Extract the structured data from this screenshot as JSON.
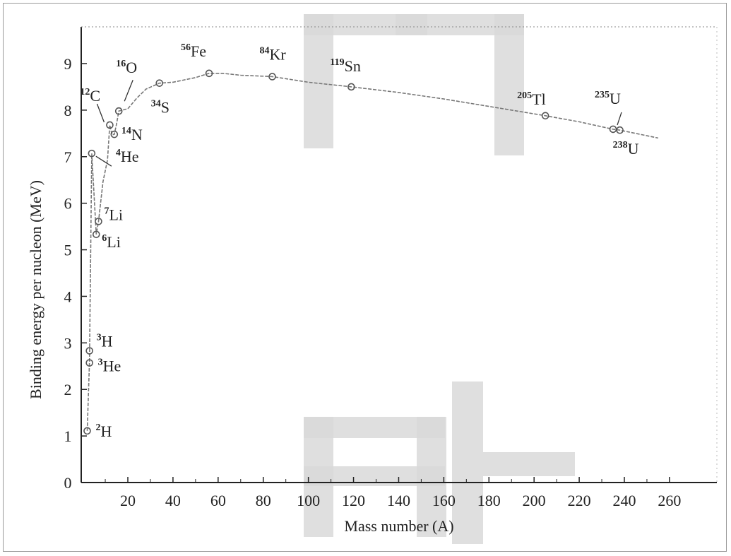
{
  "colors": {
    "curve": "#777777",
    "point": "#555555",
    "axis": "#222222",
    "watermark": "#d6d6d6"
  },
  "chart_data": {
    "type": "line",
    "xlabel": "Mass number (A)",
    "ylabel": "Binding energy per nucleon (MeV)",
    "xlim": [
      0,
      270
    ],
    "ylim": [
      0,
      9.9
    ],
    "x_ticks": [
      20,
      40,
      60,
      80,
      100,
      120,
      140,
      160,
      180,
      200,
      220,
      240,
      260
    ],
    "y_ticks": [
      0,
      1,
      2,
      3,
      4,
      5,
      6,
      7,
      8,
      9
    ],
    "grid": false,
    "points": [
      {
        "sup": "2",
        "el": "H",
        "x": 2,
        "y": 1.11
      },
      {
        "sup": "3",
        "el": "He",
        "x": 3,
        "y": 2.57
      },
      {
        "sup": "3",
        "el": "H",
        "x": 3,
        "y": 2.83
      },
      {
        "sup": "4",
        "el": "He",
        "x": 4,
        "y": 7.07
      },
      {
        "sup": "6",
        "el": "Li",
        "x": 6,
        "y": 5.33
      },
      {
        "sup": "7",
        "el": "Li",
        "x": 7,
        "y": 5.61
      },
      {
        "sup": "12",
        "el": "C",
        "x": 12,
        "y": 7.68
      },
      {
        "sup": "14",
        "el": "N",
        "x": 14,
        "y": 7.48
      },
      {
        "sup": "16",
        "el": "O",
        "x": 16,
        "y": 7.98
      },
      {
        "sup": "34",
        "el": "S",
        "x": 34,
        "y": 8.58
      },
      {
        "sup": "56",
        "el": "Fe",
        "x": 56,
        "y": 8.79
      },
      {
        "sup": "84",
        "el": "Kr",
        "x": 84,
        "y": 8.72
      },
      {
        "sup": "119",
        "el": "Sn",
        "x": 119,
        "y": 8.5
      },
      {
        "sup": "205",
        "el": "Tl",
        "x": 205,
        "y": 7.88
      },
      {
        "sup": "235",
        "el": "U",
        "x": 235,
        "y": 7.59
      },
      {
        "sup": "238",
        "el": "U",
        "x": 238,
        "y": 7.57
      }
    ],
    "curve": [
      [
        2,
        1.11
      ],
      [
        3,
        2.6
      ],
      [
        4,
        7.07
      ],
      [
        6,
        5.33
      ],
      [
        7,
        5.61
      ],
      [
        9,
        6.46
      ],
      [
        11,
        6.93
      ],
      [
        12,
        7.68
      ],
      [
        13,
        7.47
      ],
      [
        14,
        7.48
      ],
      [
        15,
        7.7
      ],
      [
        16,
        7.98
      ],
      [
        20,
        8.03
      ],
      [
        24,
        8.26
      ],
      [
        28,
        8.45
      ],
      [
        34,
        8.58
      ],
      [
        40,
        8.6
      ],
      [
        50,
        8.7
      ],
      [
        56,
        8.79
      ],
      [
        62,
        8.79
      ],
      [
        70,
        8.75
      ],
      [
        84,
        8.72
      ],
      [
        100,
        8.6
      ],
      [
        119,
        8.5
      ],
      [
        140,
        8.38
      ],
      [
        160,
        8.24
      ],
      [
        180,
        8.08
      ],
      [
        205,
        7.88
      ],
      [
        220,
        7.75
      ],
      [
        235,
        7.59
      ],
      [
        238,
        7.57
      ],
      [
        255,
        7.4
      ]
    ]
  }
}
